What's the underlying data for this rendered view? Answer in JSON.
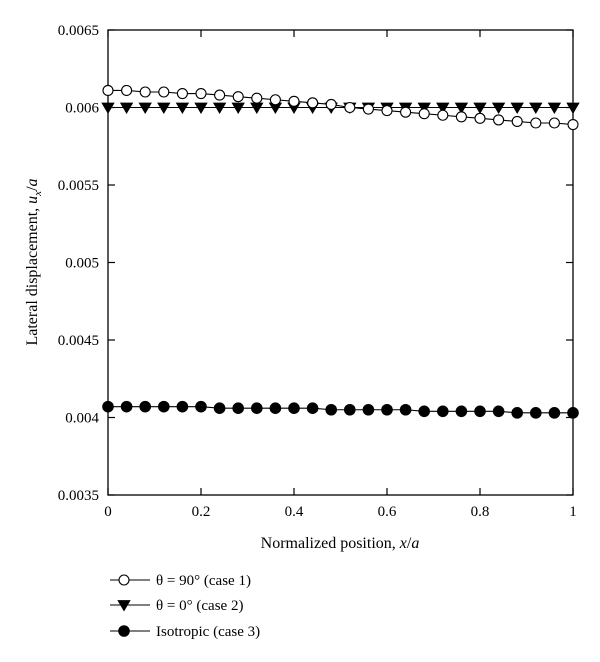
{
  "chart_data": {
    "type": "line",
    "xlabel": "Normalized position, x/a",
    "ylabel": "Lateral displacement, u_x/a",
    "xlim": [
      0,
      1
    ],
    "ylim": [
      0.0035,
      0.0065
    ],
    "x_ticks": [
      0,
      0.2,
      0.4,
      0.6,
      0.8,
      1
    ],
    "x_tick_labels": [
      "0",
      "0.2",
      "0.4",
      "0.6",
      "0.8",
      "1"
    ],
    "y_ticks": [
      0.0035,
      0.004,
      0.0045,
      0.005,
      0.0055,
      0.006,
      0.0065
    ],
    "y_tick_labels": [
      "0.0035",
      "0.004",
      "0.0045",
      "0.005",
      "0.0055",
      "0.006",
      "0.0065"
    ],
    "grid": false,
    "legend_position": "below-left",
    "x": [
      0,
      0.04,
      0.08,
      0.12,
      0.16,
      0.2,
      0.24,
      0.28,
      0.32,
      0.36,
      0.4,
      0.44,
      0.48,
      0.52,
      0.56,
      0.6,
      0.64,
      0.68,
      0.72,
      0.76,
      0.8,
      0.84,
      0.88,
      0.92,
      0.96,
      1
    ],
    "series": [
      {
        "name": "θ = 90° (case 1)",
        "marker": "open-circle",
        "values": [
          0.00611,
          0.00611,
          0.0061,
          0.0061,
          0.00609,
          0.00609,
          0.00608,
          0.00607,
          0.00606,
          0.00605,
          0.00604,
          0.00603,
          0.00602,
          0.006,
          0.00599,
          0.00598,
          0.00597,
          0.00596,
          0.00595,
          0.00594,
          0.00593,
          0.00592,
          0.00591,
          0.0059,
          0.0059,
          0.00589
        ]
      },
      {
        "name": "θ = 0° (case 2)",
        "marker": "down-triangle",
        "values": [
          0.006,
          0.006,
          0.006,
          0.006,
          0.006,
          0.006,
          0.006,
          0.006,
          0.006,
          0.006,
          0.006,
          0.006,
          0.006,
          0.006,
          0.006,
          0.006,
          0.006,
          0.006,
          0.006,
          0.006,
          0.006,
          0.006,
          0.006,
          0.006,
          0.006,
          0.006
        ]
      },
      {
        "name": "Isotropic (case 3)",
        "marker": "filled-circle",
        "values": [
          0.00407,
          0.00407,
          0.00407,
          0.00407,
          0.00407,
          0.00407,
          0.00406,
          0.00406,
          0.00406,
          0.00406,
          0.00406,
          0.00406,
          0.00405,
          0.00405,
          0.00405,
          0.00405,
          0.00405,
          0.00404,
          0.00404,
          0.00404,
          0.00404,
          0.00404,
          0.00403,
          0.00403,
          0.00403,
          0.00403
        ]
      }
    ]
  }
}
